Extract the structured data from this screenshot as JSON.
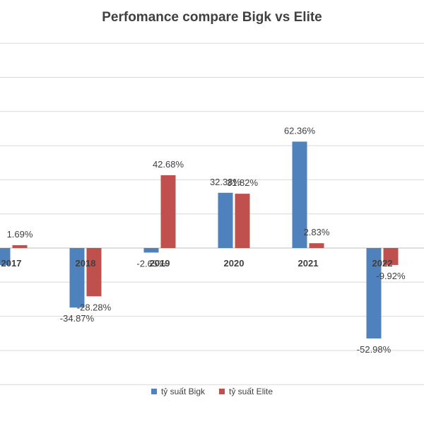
{
  "chart_data": {
    "type": "bar",
    "title": "Perfomance compare Bigk vs Elite",
    "categories": [
      "2017",
      "2018",
      "2019",
      "2020",
      "2021",
      "2022"
    ],
    "series": [
      {
        "name": "tỷ suất Bigk",
        "color": "#4f81bd",
        "values": [
          -10.0,
          -34.87,
          -2.65,
          32.38,
          62.36,
          -52.98
        ],
        "labels": [
          "",
          "-34.87%",
          "-2.65%",
          "32.38%",
          "62.36%",
          "-52.98%"
        ]
      },
      {
        "name": "tỷ suất Elite",
        "color": "#c0504d",
        "values": [
          1.69,
          -28.28,
          42.68,
          31.82,
          2.83,
          -9.92
        ],
        "labels": [
          "1.69%",
          "-28.28%",
          "42.68%",
          "31.82%",
          "2.83%",
          "-9.92%"
        ]
      }
    ],
    "ylim": [
      -80,
      120
    ],
    "grid": true,
    "legend": "bottom"
  }
}
